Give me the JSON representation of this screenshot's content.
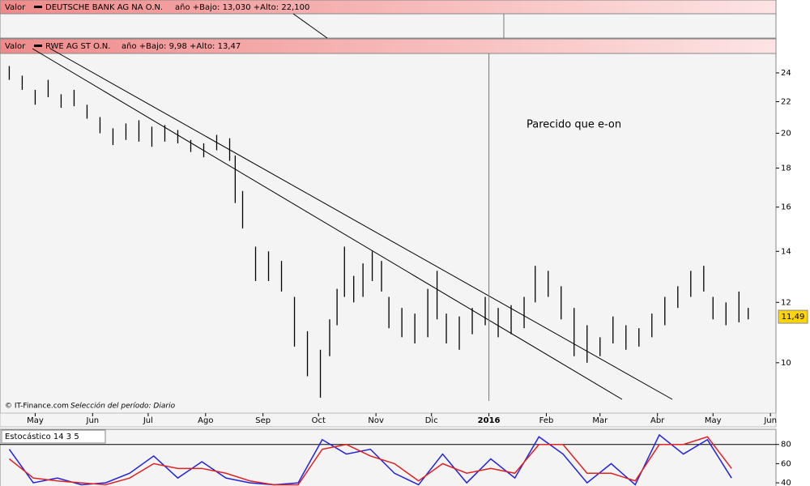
{
  "chart_data": {
    "type": "ohlc",
    "panel_top": {
      "label": "Valor",
      "name": "DEUTSCHE BANK AG NA O.N.",
      "range_text": "año +Bajo: 13,030 +Alto: 22,100"
    },
    "label": "Valor",
    "name": "RWE AG ST O.N.",
    "range_text": "año +Bajo: 9,98 +Alto: 13,47",
    "annotation": "Parecido que e-on",
    "credit": "© IT-Finance.com",
    "period": "Selección del período: Diario",
    "log_y": true,
    "color": "#000000",
    "x": [
      -14,
      -7,
      0,
      7,
      14,
      21,
      28,
      35,
      42,
      49,
      56,
      63,
      70,
      77,
      84,
      91,
      98,
      105,
      108,
      112,
      119,
      126,
      133,
      140,
      147,
      154,
      159,
      163,
      167,
      172,
      177,
      182,
      187,
      191,
      198,
      205,
      212,
      217,
      222,
      229,
      236,
      243,
      250,
      257,
      264,
      270,
      277,
      284,
      291,
      298,
      305,
      312,
      319,
      326,
      333,
      340,
      347,
      354,
      361,
      366,
      373,
      380,
      385
    ],
    "high": [
      24.5,
      23.8,
      22.8,
      23.5,
      22.5,
      22.8,
      21.8,
      21.0,
      20.3,
      20.6,
      20.8,
      20.4,
      20.5,
      20.2,
      19.6,
      19.4,
      19.9,
      19.7,
      18.7,
      16.8,
      14.2,
      14.0,
      13.6,
      12.2,
      11.0,
      10.4,
      11.4,
      12.5,
      14.2,
      13.0,
      13.5,
      14.0,
      13.6,
      12.2,
      11.8,
      11.6,
      12.5,
      13.2,
      11.6,
      11.5,
      11.8,
      12.2,
      11.8,
      11.9,
      12.2,
      13.4,
      13.2,
      12.6,
      11.8,
      11.2,
      10.8,
      11.5,
      11.2,
      11.1,
      11.6,
      12.2,
      12.6,
      13.2,
      13.4,
      12.2,
      12.0,
      12.4,
      11.8
    ],
    "low": [
      23.5,
      22.8,
      21.8,
      22.3,
      21.6,
      21.7,
      20.9,
      20.0,
      19.3,
      19.6,
      19.5,
      19.2,
      19.5,
      19.4,
      18.9,
      18.6,
      19.0,
      18.4,
      16.2,
      15.0,
      12.8,
      12.8,
      12.4,
      10.5,
      9.6,
      9.0,
      10.2,
      11.2,
      12.2,
      12.0,
      12.2,
      12.8,
      12.4,
      11.1,
      10.8,
      10.6,
      10.8,
      11.4,
      10.6,
      10.4,
      10.9,
      11.2,
      10.8,
      10.9,
      11.1,
      12.0,
      12.2,
      11.4,
      10.2,
      10.0,
      10.2,
      10.6,
      10.4,
      10.5,
      10.8,
      11.2,
      11.8,
      12.2,
      12.4,
      11.4,
      11.2,
      11.3,
      11.4
    ],
    "last_value": {
      "value": 11.49,
      "label": "11,49"
    },
    "xlim": [
      -19,
      400
    ],
    "xticks": [
      {
        "value": 0,
        "label": "May"
      },
      {
        "value": 31,
        "label": "Jun"
      },
      {
        "value": 61,
        "label": "Jul"
      },
      {
        "value": 92,
        "label": "Ago"
      },
      {
        "value": 123,
        "label": "Sep"
      },
      {
        "value": 153,
        "label": "Oct"
      },
      {
        "value": 184,
        "label": "Nov"
      },
      {
        "value": 214,
        "label": "Dic"
      },
      {
        "value": 245,
        "label": "2016"
      },
      {
        "value": 276,
        "label": "Feb"
      },
      {
        "value": 305,
        "label": "Mar"
      },
      {
        "value": 336,
        "label": "Abr"
      },
      {
        "value": 366,
        "label": "May"
      },
      {
        "value": 397,
        "label": "Jun"
      }
    ],
    "ylim": [
      8.91,
      25.45
    ],
    "yticks": [
      10,
      12,
      14,
      16,
      18,
      20,
      22,
      24
    ],
    "stochastic": {
      "title": "Estocástico 14 3 5",
      "x": [
        -14,
        -1,
        12,
        25,
        38,
        51,
        64,
        77,
        90,
        103,
        116,
        129,
        142,
        155,
        168,
        181,
        194,
        207,
        220,
        233,
        246,
        259,
        272,
        285,
        298,
        311,
        324,
        337,
        350,
        363,
        376
      ],
      "series": [
        {
          "color": "#2222dd",
          "values": [
            75,
            40,
            45,
            38,
            40,
            50,
            68,
            45,
            62,
            45,
            40,
            38,
            40,
            85,
            70,
            75,
            50,
            38,
            70,
            40,
            65,
            45,
            88,
            70,
            40,
            60,
            38,
            90,
            70,
            85,
            45
          ]
        },
        {
          "color": "#dd2222",
          "values": [
            65,
            45,
            42,
            40,
            38,
            45,
            60,
            55,
            55,
            50,
            42,
            38,
            38,
            75,
            80,
            68,
            60,
            42,
            60,
            50,
            55,
            50,
            80,
            80,
            50,
            50,
            42,
            80,
            80,
            88,
            55
          ]
        }
      ],
      "ylim": [
        36.7,
        95.8
      ],
      "yticks": [
        40,
        60,
        80
      ]
    }
  }
}
